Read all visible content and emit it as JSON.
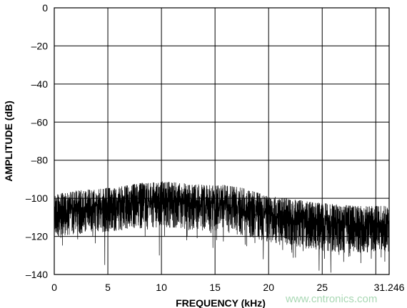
{
  "chart_data": {
    "type": "line",
    "title": "",
    "xlabel": "FREQUENCY (kHz)",
    "ylabel": "AMPLITUDE (dB)",
    "xlim": [
      0,
      31.246
    ],
    "ylim": [
      -140,
      0
    ],
    "x_ticks": [
      0,
      5,
      10,
      15,
      20,
      25,
      31.246
    ],
    "x_tick_labels": [
      "0",
      "5",
      "10",
      "15",
      "20",
      "25",
      "31.246"
    ],
    "y_ticks": [
      0,
      -20,
      -40,
      -60,
      -80,
      -100,
      -120,
      -140
    ],
    "y_tick_labels": [
      "0",
      "–20",
      "–40",
      "–60",
      "–80",
      "–100",
      "–120",
      "–140"
    ],
    "x_grid": [
      0,
      5,
      10,
      15,
      20,
      25,
      30
    ],
    "grid": true,
    "series": [
      {
        "description": "noise floor spectrum (approximate upper/lower envelope)",
        "x": [
          0,
          2,
          4,
          6,
          8,
          10,
          12,
          14,
          16,
          18,
          20,
          22,
          24,
          26,
          28,
          30,
          31.246
        ],
        "upper": [
          -98,
          -96,
          -95,
          -94,
          -92,
          -91,
          -92,
          -93,
          -93,
          -95,
          -99,
          -100,
          -102,
          -103,
          -104,
          -104,
          -104
        ],
        "lower": [
          -120,
          -119,
          -118,
          -117,
          -116,
          -115,
          -116,
          -117,
          -118,
          -120,
          -123,
          -125,
          -127,
          -128,
          -129,
          -128,
          -128
        ],
        "color": "#000000"
      }
    ],
    "spurs": [
      {
        "x": 4.7,
        "y": -135
      },
      {
        "x": 9.8,
        "y": -130
      },
      {
        "x": 14.8,
        "y": -126
      },
      {
        "x": 19.5,
        "y": -132
      },
      {
        "x": 24.7,
        "y": -138
      },
      {
        "x": 25.8,
        "y": -139
      },
      {
        "x": 28.6,
        "y": -134
      },
      {
        "x": 30.5,
        "y": -131
      }
    ]
  },
  "watermark": "www.cntronics.com"
}
